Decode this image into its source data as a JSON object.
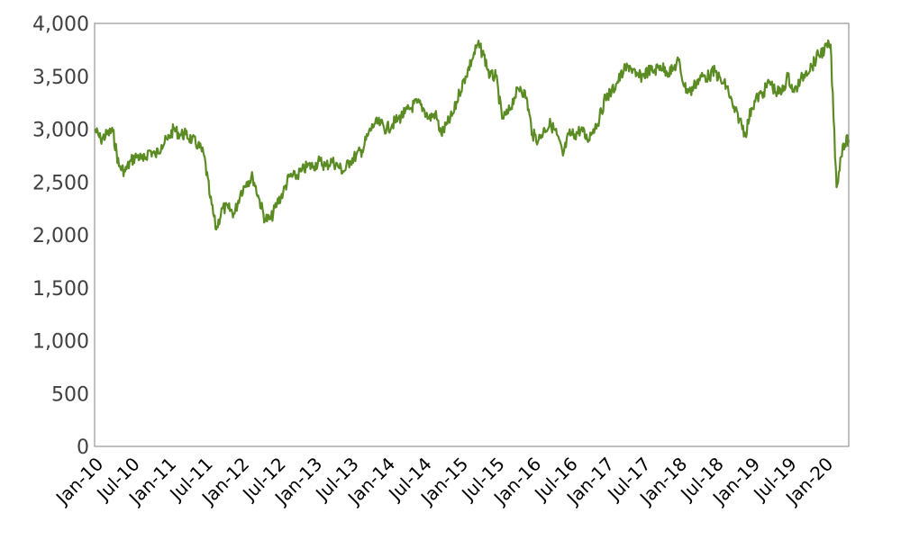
{
  "chart_data": {
    "type": "line",
    "title": "",
    "xlabel": "",
    "ylabel": "",
    "ylim": [
      0,
      4000
    ],
    "y_ticks": [
      0,
      500,
      1000,
      1500,
      2000,
      2500,
      3000,
      3500,
      4000
    ],
    "y_tick_labels": [
      "0",
      "500",
      "1,000",
      "1,500",
      "2,000",
      "2,500",
      "3,000",
      "3,500",
      "4,000"
    ],
    "x_tick_labels": [
      "Jan-10",
      "Jul-10",
      "Jan-11",
      "Jul-11",
      "Jan-12",
      "Jul-12",
      "Jan-13",
      "Jul-13",
      "Jan-14",
      "Jul-14",
      "Jan-15",
      "Jul-15",
      "Jan-16",
      "Jul-16",
      "Jan-17",
      "Jul-17",
      "Jan-18",
      "Jul-18",
      "Jan-19",
      "Jul-19",
      "Jan-20"
    ],
    "x_range": [
      "Jan-10",
      "May-20"
    ],
    "grid": false,
    "legend": "none",
    "line_color": "#5b8c24",
    "series": [
      {
        "x": [
          "Jan-10",
          "Feb-10",
          "Mar-10",
          "Apr-10",
          "May-10",
          "Jun-10",
          "Jul-10",
          "Aug-10",
          "Sep-10",
          "Oct-10",
          "Nov-10",
          "Dec-10",
          "Jan-11",
          "Feb-11",
          "Mar-11",
          "Apr-11",
          "May-11",
          "Jun-11",
          "Jul-11",
          "Aug-11",
          "Sep-11",
          "Oct-11",
          "Nov-11",
          "Dec-11",
          "Jan-12",
          "Feb-12",
          "Mar-12",
          "Apr-12",
          "May-12",
          "Jun-12",
          "Jul-12",
          "Aug-12",
          "Sep-12",
          "Oct-12",
          "Nov-12",
          "Dec-12",
          "Jan-13",
          "Feb-13",
          "Mar-13",
          "Apr-13",
          "May-13",
          "Jun-13",
          "Jul-13",
          "Aug-13",
          "Sep-13",
          "Oct-13",
          "Nov-13",
          "Dec-13",
          "Jan-14",
          "Feb-14",
          "Mar-14",
          "Apr-14",
          "May-14",
          "Jun-14",
          "Jul-14",
          "Aug-14",
          "Sep-14",
          "Oct-14",
          "Nov-14",
          "Dec-14",
          "Jan-15",
          "Feb-15",
          "Mar-15",
          "Apr-15",
          "May-15",
          "Jun-15",
          "Jul-15",
          "Aug-15",
          "Sep-15",
          "Oct-15",
          "Nov-15",
          "Dec-15",
          "Jan-16",
          "Feb-16",
          "Mar-16",
          "Apr-16",
          "May-16",
          "Jun-16",
          "Jul-16",
          "Aug-16",
          "Sep-16",
          "Oct-16",
          "Nov-16",
          "Dec-16",
          "Jan-17",
          "Feb-17",
          "Mar-17",
          "Apr-17",
          "May-17",
          "Jun-17",
          "Jul-17",
          "Aug-17",
          "Sep-17",
          "Oct-17",
          "Nov-17",
          "Dec-17",
          "Jan-18",
          "Feb-18",
          "Mar-18",
          "Apr-18",
          "May-18",
          "Jun-18",
          "Jul-18",
          "Aug-18",
          "Sep-18",
          "Oct-18",
          "Nov-18",
          "Dec-18",
          "Jan-19",
          "Feb-19",
          "Mar-19",
          "Apr-19",
          "May-19",
          "Jun-19",
          "Jul-19",
          "Aug-19",
          "Sep-19",
          "Oct-19",
          "Nov-19",
          "Dec-19",
          "Jan-20",
          "Feb-20",
          "Mar-20",
          "Apr-20",
          "May-20"
        ],
        "values": [
          3000,
          2900,
          2950,
          2980,
          2650,
          2600,
          2700,
          2750,
          2700,
          2800,
          2750,
          2850,
          2900,
          3000,
          2950,
          2950,
          2900,
          2850,
          2750,
          2350,
          2050,
          2250,
          2250,
          2200,
          2400,
          2500,
          2550,
          2350,
          2150,
          2150,
          2300,
          2400,
          2550,
          2550,
          2600,
          2650,
          2650,
          2700,
          2650,
          2700,
          2650,
          2600,
          2700,
          2750,
          2800,
          2950,
          3050,
          3050,
          3000,
          3050,
          3100,
          3150,
          3200,
          3250,
          3200,
          3100,
          3150,
          2950,
          3050,
          3150,
          3350,
          3500,
          3650,
          3800,
          3700,
          3500,
          3500,
          3100,
          3150,
          3300,
          3400,
          3300,
          2950,
          2900,
          3000,
          3050,
          2950,
          2750,
          2950,
          2950,
          3000,
          2900,
          3000,
          3100,
          3300,
          3350,
          3450,
          3550,
          3600,
          3500,
          3500,
          3550,
          3550,
          3600,
          3550,
          3550,
          3650,
          3400,
          3350,
          3450,
          3500,
          3500,
          3550,
          3450,
          3400,
          3200,
          3100,
          2950,
          3200,
          3300,
          3350,
          3450,
          3350,
          3350,
          3500,
          3350,
          3450,
          3550,
          3600,
          3700,
          3750,
          3800,
          2450,
          2850,
          2900
        ]
      }
    ]
  }
}
